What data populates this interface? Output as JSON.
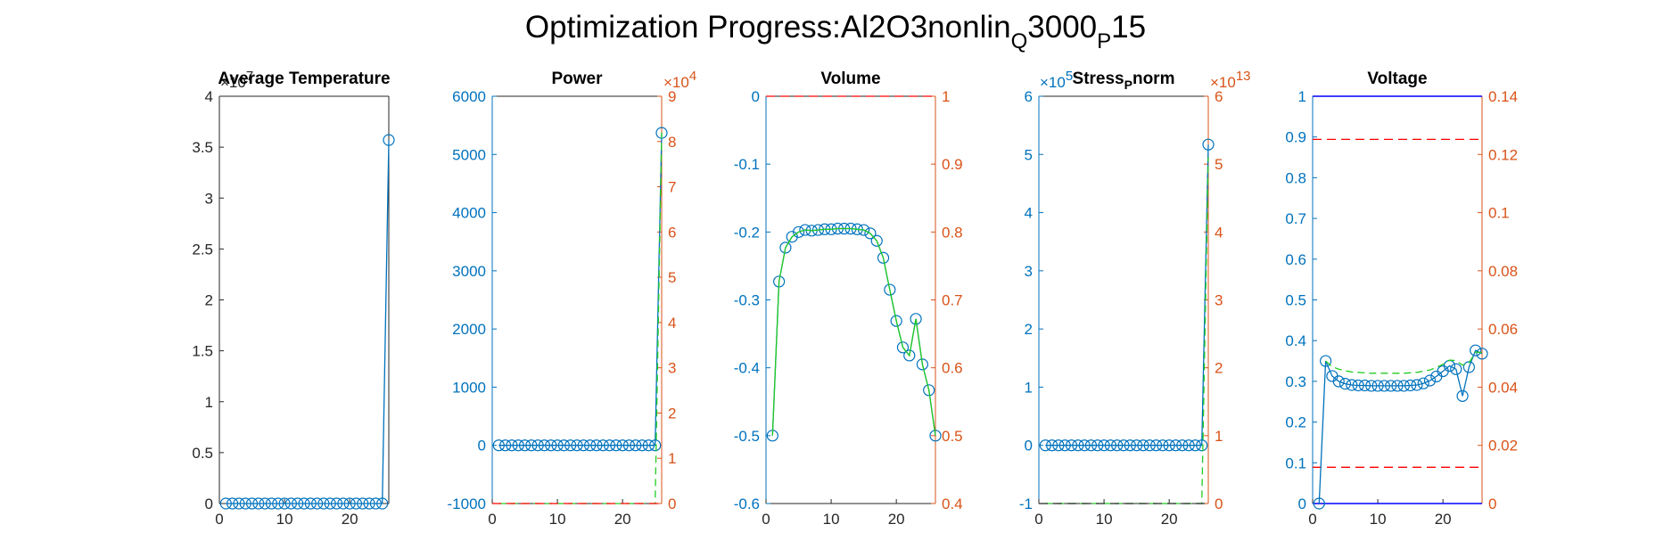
{
  "figure": {
    "title_prefix": "Optimization Progress:Al2O3nonlin",
    "title_sub1": "Q",
    "title_mid": "3000",
    "title_sub2": "P",
    "title_suffix": "15"
  },
  "colors": {
    "left_axis": "#0072BD",
    "right_axis": "#D95319",
    "black_axis": "#262626",
    "marker": "#0072BD",
    "series_line": "#0072BD",
    "green_dash": "#22CC22",
    "red_dash": "#FF0000",
    "blue_line": "#0000FF"
  },
  "chart_data": [
    {
      "type": "line",
      "title_parts": [
        {
          "t": "Average Temperature"
        }
      ],
      "left_axis_color": "black",
      "ylim": [
        0,
        4
      ],
      "yticks": [
        0,
        0.5,
        1,
        1.5,
        2,
        2.5,
        3,
        3.5,
        4
      ],
      "ytick_labels": [
        "0",
        "0.5",
        "1",
        "1.5",
        "2",
        "2.5",
        "3",
        "3.5",
        "4"
      ],
      "y_exponent": "7",
      "xlim": [
        0,
        26
      ],
      "xticks": [
        0,
        10,
        20
      ],
      "xtick_labels": [
        "0",
        "10",
        "20"
      ],
      "series": [
        {
          "style": "marker-line",
          "x": [
            1,
            2,
            3,
            4,
            5,
            6,
            7,
            8,
            9,
            10,
            11,
            12,
            13,
            14,
            15,
            16,
            17,
            18,
            19,
            20,
            21,
            22,
            23,
            24,
            25,
            26
          ],
          "values": [
            0,
            0,
            0,
            0,
            0,
            0,
            0,
            0,
            0,
            0,
            0,
            0,
            0,
            0,
            0,
            0,
            0,
            0,
            0,
            0,
            0,
            0,
            0,
            0,
            0,
            3.57
          ]
        }
      ]
    },
    {
      "type": "line",
      "title_parts": [
        {
          "t": "Power"
        }
      ],
      "left_axis_color": "blue",
      "ylim": [
        -1000,
        6000
      ],
      "yticks": [
        -1000,
        0,
        1000,
        2000,
        3000,
        4000,
        5000,
        6000
      ],
      "ytick_labels": [
        "-1000",
        "0",
        "1000",
        "2000",
        "3000",
        "4000",
        "5000",
        "6000"
      ],
      "right_ylim": [
        0,
        9
      ],
      "right_yticks": [
        0,
        1,
        2,
        3,
        4,
        5,
        6,
        7,
        8,
        9
      ],
      "right_ytick_labels": [
        "0",
        "1",
        "2",
        "3",
        "4",
        "5",
        "6",
        "7",
        "8",
        "9"
      ],
      "right_exponent": "4",
      "xlim": [
        0,
        26
      ],
      "xticks": [
        0,
        10,
        20
      ],
      "xtick_labels": [
        "0",
        "10",
        "20"
      ],
      "series": [
        {
          "style": "marker-line",
          "x": [
            1,
            2,
            3,
            4,
            5,
            6,
            7,
            8,
            9,
            10,
            11,
            12,
            13,
            14,
            15,
            16,
            17,
            18,
            19,
            20,
            21,
            22,
            23,
            24,
            25,
            26
          ],
          "values": [
            0,
            0,
            0,
            0,
            0,
            0,
            0,
            0,
            0,
            0,
            0,
            0,
            0,
            0,
            0,
            0,
            0,
            0,
            0,
            0,
            0,
            0,
            0,
            0,
            0,
            5370
          ]
        },
        {
          "style": "green-dash",
          "axis": "right",
          "x": [
            1,
            2,
            3,
            4,
            5,
            6,
            7,
            8,
            9,
            10,
            11,
            12,
            13,
            14,
            15,
            16,
            17,
            18,
            19,
            20,
            21,
            22,
            23,
            24,
            25,
            26
          ],
          "values": [
            0,
            0,
            0,
            0,
            0,
            0,
            0,
            0,
            0,
            0,
            0,
            0,
            0,
            0,
            0,
            0,
            0,
            0,
            0,
            0,
            0,
            0,
            0,
            0,
            0,
            8.2
          ]
        },
        {
          "style": "red-dash",
          "axis": "right",
          "x": [
            0,
            26
          ],
          "values": [
            0,
            0
          ]
        }
      ]
    },
    {
      "type": "line",
      "title_parts": [
        {
          "t": "Volume"
        }
      ],
      "left_axis_color": "blue",
      "ylim": [
        -0.6,
        0
      ],
      "yticks": [
        -0.6,
        -0.5,
        -0.4,
        -0.3,
        -0.2,
        -0.1,
        0
      ],
      "ytick_labels": [
        "-0.6",
        "-0.5",
        "-0.4",
        "-0.3",
        "-0.2",
        "-0.1",
        "0"
      ],
      "right_ylim": [
        0.4,
        1
      ],
      "right_yticks": [
        0.4,
        0.5,
        0.6,
        0.7,
        0.8,
        0.9,
        1
      ],
      "right_ytick_labels": [
        "0.4",
        "0.5",
        "0.6",
        "0.7",
        "0.8",
        "0.9",
        "1"
      ],
      "xlim": [
        0,
        26
      ],
      "xticks": [
        0,
        10,
        20
      ],
      "xtick_labels": [
        "0",
        "10",
        "20"
      ],
      "series": [
        {
          "style": "marker-line",
          "x": [
            1,
            2,
            3,
            4,
            5,
            6,
            7,
            8,
            9,
            10,
            11,
            12,
            13,
            14,
            15,
            16,
            17,
            18,
            19,
            20,
            21,
            22,
            23,
            24,
            25,
            26
          ],
          "values": [
            -0.5,
            -0.273,
            -0.223,
            -0.207,
            -0.2,
            -0.197,
            -0.198,
            -0.197,
            -0.196,
            -0.196,
            -0.195,
            -0.195,
            -0.195,
            -0.196,
            -0.197,
            -0.202,
            -0.213,
            -0.238,
            -0.285,
            -0.331,
            -0.37,
            -0.382,
            -0.328,
            -0.395,
            -0.433,
            -0.5
          ]
        },
        {
          "style": "green-solid",
          "axis": "right",
          "x": [
            1,
            2,
            3,
            4,
            5,
            6,
            7,
            8,
            9,
            10,
            11,
            12,
            13,
            14,
            15,
            16,
            17,
            18,
            19,
            20,
            21,
            22,
            23,
            24,
            25,
            26
          ],
          "values": [
            0.5,
            0.727,
            0.777,
            0.793,
            0.8,
            0.803,
            0.802,
            0.803,
            0.804,
            0.804,
            0.805,
            0.805,
            0.805,
            0.804,
            0.803,
            0.798,
            0.787,
            0.762,
            0.715,
            0.669,
            0.63,
            0.618,
            0.672,
            0.605,
            0.567,
            0.5
          ]
        },
        {
          "style": "red-dash",
          "axis": "right",
          "x": [
            0,
            26
          ],
          "values": [
            1,
            1
          ]
        }
      ]
    },
    {
      "type": "line",
      "title_parts": [
        {
          "t": "Stress"
        },
        {
          "t": "P",
          "sub": true
        },
        {
          "t": "norm"
        }
      ],
      "left_axis_color": "blue",
      "ylim": [
        -1,
        6
      ],
      "yticks": [
        -1,
        0,
        1,
        2,
        3,
        4,
        5,
        6
      ],
      "ytick_labels": [
        "-1",
        "0",
        "1",
        "2",
        "3",
        "4",
        "5",
        "6"
      ],
      "y_exponent": "5",
      "right_ylim": [
        0,
        6
      ],
      "right_yticks": [
        0,
        1,
        2,
        3,
        4,
        5,
        6
      ],
      "right_ytick_labels": [
        "0",
        "1",
        "2",
        "3",
        "4",
        "5",
        "6"
      ],
      "right_exponent": "13",
      "xlim": [
        0,
        26
      ],
      "xticks": [
        0,
        10,
        20
      ],
      "xtick_labels": [
        "0",
        "10",
        "20"
      ],
      "series": [
        {
          "style": "marker-line",
          "x": [
            1,
            2,
            3,
            4,
            5,
            6,
            7,
            8,
            9,
            10,
            11,
            12,
            13,
            14,
            15,
            16,
            17,
            18,
            19,
            20,
            21,
            22,
            23,
            24,
            25,
            26
          ],
          "values": [
            0,
            0,
            0,
            0,
            0,
            0,
            0,
            0,
            0,
            0,
            0,
            0,
            0,
            0,
            0,
            0,
            0,
            0,
            0,
            0,
            0,
            0,
            0,
            0,
            0,
            5.17
          ]
        },
        {
          "style": "green-dash",
          "axis": "right",
          "x": [
            1,
            2,
            3,
            4,
            5,
            6,
            7,
            8,
            9,
            10,
            11,
            12,
            13,
            14,
            15,
            16,
            17,
            18,
            19,
            20,
            21,
            22,
            23,
            24,
            25,
            26
          ],
          "values": [
            0,
            0,
            0,
            0,
            0,
            0,
            0,
            0,
            0,
            0,
            0,
            0,
            0,
            0,
            0,
            0,
            0,
            0,
            0,
            0,
            0,
            0,
            0,
            0,
            0,
            5.1
          ]
        },
        {
          "style": "black-dash",
          "axis": "right",
          "x": [
            0,
            26
          ],
          "values": [
            0,
            0
          ]
        }
      ]
    },
    {
      "type": "line",
      "title_parts": [
        {
          "t": "Voltage"
        }
      ],
      "left_axis_color": "blue",
      "ylim": [
        0,
        1
      ],
      "yticks": [
        0,
        0.1,
        0.2,
        0.3,
        0.4,
        0.5,
        0.6,
        0.7,
        0.8,
        0.9,
        1
      ],
      "ytick_labels": [
        "0",
        "0.1",
        "0.2",
        "0.3",
        "0.4",
        "0.5",
        "0.6",
        "0.7",
        "0.8",
        "0.9",
        "1"
      ],
      "right_ylim": [
        0,
        0.14
      ],
      "right_yticks": [
        0,
        0.02,
        0.04,
        0.06,
        0.08,
        0.1,
        0.12,
        0.14
      ],
      "right_ytick_labels": [
        "0",
        "0.02",
        "0.04",
        "0.06",
        "0.08",
        "0.1",
        "0.12",
        "0.14"
      ],
      "xlim": [
        0,
        26
      ],
      "xticks": [
        0,
        10,
        20
      ],
      "xtick_labels": [
        "0",
        "10",
        "20"
      ],
      "series": [
        {
          "style": "blue-solid",
          "x": [
            0,
            26
          ],
          "values": [
            1,
            1
          ]
        },
        {
          "style": "blue-solid",
          "x": [
            0,
            26
          ],
          "values": [
            0,
            0
          ]
        },
        {
          "style": "red-dash",
          "x": [
            0,
            26
          ],
          "values": [
            0.894,
            0.894
          ]
        },
        {
          "style": "red-dash",
          "x": [
            0,
            26
          ],
          "values": [
            0.089,
            0.089
          ]
        },
        {
          "style": "marker-line",
          "x": [
            1,
            2,
            3,
            4,
            5,
            6,
            7,
            8,
            9,
            10,
            11,
            12,
            13,
            14,
            15,
            16,
            17,
            18,
            19,
            20,
            21,
            22,
            23,
            24,
            25,
            26
          ],
          "values": [
            0,
            0.35,
            0.313,
            0.3,
            0.294,
            0.291,
            0.29,
            0.29,
            0.289,
            0.289,
            0.289,
            0.289,
            0.289,
            0.289,
            0.29,
            0.291,
            0.295,
            0.302,
            0.312,
            0.325,
            0.338,
            0.33,
            0.264,
            0.335,
            0.376,
            0.368
          ]
        },
        {
          "style": "green-dash-curve",
          "x": [
            2,
            3,
            4,
            5,
            6,
            7,
            8,
            9,
            10,
            11,
            12,
            13,
            14,
            15,
            16,
            17,
            18,
            19,
            20,
            21,
            22,
            23,
            24,
            25,
            26
          ],
          "values": [
            0.35,
            0.336,
            0.33,
            0.326,
            0.323,
            0.322,
            0.321,
            0.32,
            0.32,
            0.32,
            0.32,
            0.32,
            0.32,
            0.321,
            0.322,
            0.325,
            0.328,
            0.334,
            0.342,
            0.352,
            0.351,
            0.34,
            0.345,
            0.372,
            0.37
          ]
        }
      ]
    }
  ]
}
